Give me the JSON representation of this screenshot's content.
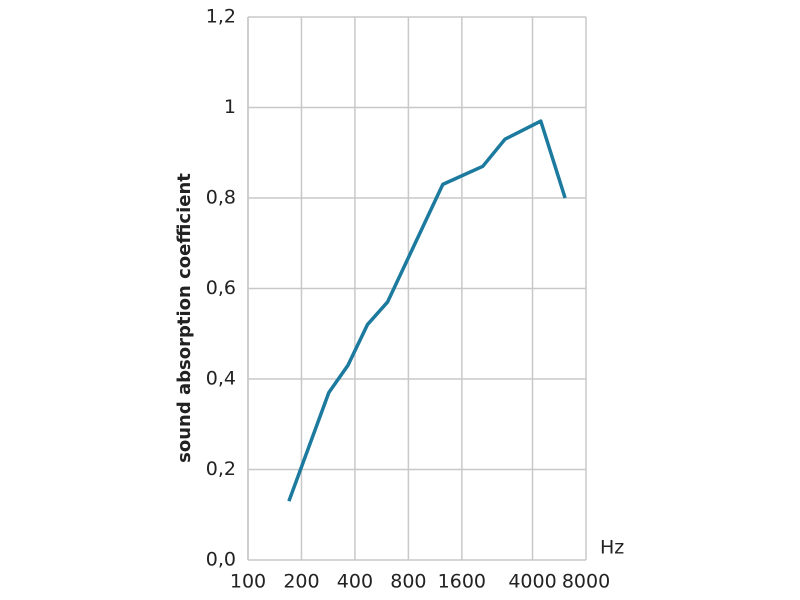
{
  "chart_data": {
    "type": "line",
    "y_label": "sound absorption coefficient",
    "x_unit": "Hz",
    "x": [
      170,
      285,
      365,
      470,
      610,
      1250,
      2100,
      2800,
      4450,
      6100
    ],
    "series": [
      {
        "color": "#1b7a9e",
        "values": [
          0.13,
          0.37,
          0.43,
          0.52,
          0.57,
          0.83,
          0.87,
          0.93,
          0.97,
          0.8
        ]
      }
    ],
    "xlim": [
      100,
      8000
    ],
    "xscale": "log",
    "xticks": [
      100,
      200,
      400,
      800,
      1600,
      4000,
      8000
    ],
    "ylim": [
      0,
      1.2
    ],
    "yticks": [
      {
        "value": 0,
        "label": "0,0"
      },
      {
        "value": 0.2,
        "label": "0,2"
      },
      {
        "value": 0.4,
        "label": "0,4"
      },
      {
        "value": 0.6,
        "label": "0,6"
      },
      {
        "value": 0.8,
        "label": "0,8"
      },
      1,
      {
        "value": 1.2,
        "label": "1,2"
      }
    ],
    "grid": true
  }
}
